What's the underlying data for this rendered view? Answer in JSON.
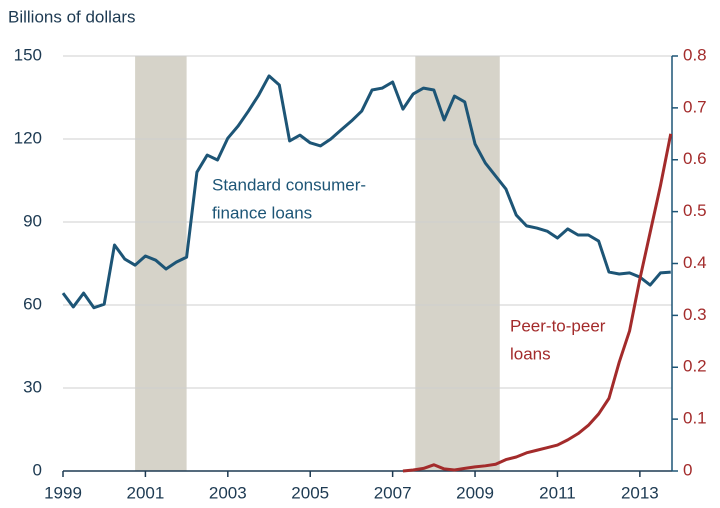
{
  "chart_data": {
    "type": "line",
    "y_label": "Billions of dollars",
    "x": [
      1999,
      1999.25,
      1999.5,
      1999.75,
      2000,
      2000.25,
      2000.5,
      2000.75,
      2001,
      2001.25,
      2001.5,
      2001.75,
      2002,
      2002.25,
      2002.5,
      2002.75,
      2003,
      2003.25,
      2003.5,
      2003.75,
      2004,
      2004.25,
      2004.5,
      2004.75,
      2005,
      2005.25,
      2005.5,
      2005.75,
      2006,
      2006.25,
      2006.5,
      2006.75,
      2007,
      2007.25,
      2007.5,
      2007.75,
      2008,
      2008.25,
      2008.5,
      2008.75,
      2009,
      2009.25,
      2009.5,
      2009.75,
      2010,
      2010.25,
      2010.5,
      2010.75,
      2011,
      2011.25,
      2011.5,
      2011.75,
      2012,
      2012.25,
      2012.5,
      2012.75,
      2013,
      2013.25,
      2013.5,
      2013.75
    ],
    "series": [
      {
        "name": "Standard consumer-finance loans",
        "color": "#1d5576",
        "values": [
          64.3,
          59.3,
          64.3,
          59,
          60.3,
          81.7,
          76.6,
          74.4,
          77.7,
          76.2,
          73,
          75.5,
          77.3,
          108,
          114.2,
          112.4,
          120.3,
          124.7,
          130.1,
          135.9,
          142.8,
          139.5,
          119.3,
          121.4,
          118.6,
          117.5,
          120,
          123.3,
          126.5,
          130.1,
          137.7,
          138.4,
          140.6,
          130.8,
          136.3,
          138.4,
          137.7,
          126.9,
          135.5,
          133.4,
          118.2,
          111.3,
          106.6,
          101.9,
          92.5,
          88.6,
          87.8,
          86.7,
          84.2,
          87.5,
          85.3,
          85.3,
          83.1,
          71.9,
          71.2,
          71.6,
          70.1,
          67.2,
          71.6,
          71.9
        ]
      },
      {
        "name": "Peer-to-peer loans",
        "color": "#a32b2b",
        "axis": "y2",
        "values": [
          null,
          null,
          null,
          null,
          null,
          null,
          null,
          null,
          null,
          null,
          null,
          null,
          null,
          null,
          null,
          null,
          null,
          null,
          null,
          null,
          null,
          null,
          null,
          null,
          null,
          null,
          null,
          null,
          null,
          null,
          null,
          null,
          null,
          0,
          0.002,
          0.005,
          0.012,
          0.004,
          0.002,
          0.005,
          0.008,
          0.01,
          0.013,
          0.022,
          0.027,
          0.035,
          0.04,
          0.045,
          0.05,
          0.06,
          0.072,
          0.088,
          0.11,
          0.14,
          0.21,
          0.27,
          0.37,
          0.46,
          0.55,
          0.65
        ]
      }
    ],
    "annotations": [
      {
        "lines": [
          "Standard consumer-",
          "finance loans"
        ],
        "color": "#1d5576"
      },
      {
        "lines": [
          "Peer-to-peer",
          "loans"
        ],
        "color": "#a32b2b"
      }
    ],
    "recessions": [
      [
        2000.75,
        2002
      ],
      [
        2007.55,
        2009.6
      ]
    ],
    "recession_color": "#d6d3c9",
    "xlim": [
      1999,
      2013.78
    ],
    "xticks": [
      1999,
      2001,
      2003,
      2005,
      2007,
      2009,
      2011,
      2013
    ],
    "ylim": [
      0,
      150
    ],
    "yticks": [
      0,
      30,
      60,
      90,
      120,
      150
    ],
    "y2lim": [
      0,
      0.8
    ],
    "y2ticks": [
      0,
      0.1,
      0.2,
      0.3,
      0.4,
      0.5,
      0.6,
      0.7,
      0.8
    ],
    "grid": true
  }
}
